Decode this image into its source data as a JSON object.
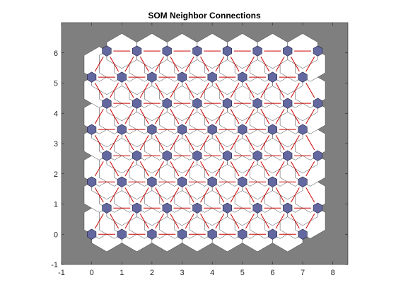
{
  "chart_data": {
    "type": "scatter",
    "title": "SOM Neighbor Connections",
    "xlabel": "",
    "ylabel": "",
    "xlim": [
      -1,
      8.5
    ],
    "ylim": [
      -1,
      7
    ],
    "xticks": [
      -1,
      0,
      1,
      2,
      3,
      4,
      5,
      6,
      7,
      8
    ],
    "yticks": [
      -1,
      0,
      1,
      2,
      3,
      4,
      5,
      6
    ],
    "grid": false,
    "topology": "hextop",
    "grid_size": {
      "columns": 8,
      "rows": 8
    },
    "neurons": {
      "x": [
        0,
        1,
        2,
        3,
        4,
        5,
        6,
        7,
        0.5,
        1.5,
        2.5,
        3.5,
        4.5,
        5.5,
        6.5,
        7.5,
        0,
        1,
        2,
        3,
        4,
        5,
        6,
        7,
        0.5,
        1.5,
        2.5,
        3.5,
        4.5,
        5.5,
        6.5,
        7.5,
        0,
        1,
        2,
        3,
        4,
        5,
        6,
        7,
        0.5,
        1.5,
        2.5,
        3.5,
        4.5,
        5.5,
        6.5,
        7.5,
        0,
        1,
        2,
        3,
        4,
        5,
        6,
        7,
        0.5,
        1.5,
        2.5,
        3.5,
        4.5,
        5.5,
        6.5,
        7.5
      ],
      "y": [
        0,
        0,
        0,
        0,
        0,
        0,
        0,
        0,
        0.866,
        0.866,
        0.866,
        0.866,
        0.866,
        0.866,
        0.866,
        0.866,
        1.732,
        1.732,
        1.732,
        1.732,
        1.732,
        1.732,
        1.732,
        1.732,
        2.598,
        2.598,
        2.598,
        2.598,
        2.598,
        2.598,
        2.598,
        2.598,
        3.464,
        3.464,
        3.464,
        3.464,
        3.464,
        3.464,
        3.464,
        3.464,
        4.33,
        4.33,
        4.33,
        4.33,
        4.33,
        4.33,
        4.33,
        4.33,
        5.196,
        5.196,
        5.196,
        5.196,
        5.196,
        5.196,
        5.196,
        5.196,
        6.062,
        6.062,
        6.062,
        6.062,
        6.062,
        6.062,
        6.062,
        6.062
      ]
    },
    "colors": {
      "axes_background": "#7f7f7f",
      "neuron_fill": "#6468a0",
      "neuron_edge": "#1e1e3c",
      "connection_patch": "#ffffff",
      "connection_line": "#cc0000",
      "patch_edge": "#404040",
      "tick_text": "#262626"
    }
  }
}
